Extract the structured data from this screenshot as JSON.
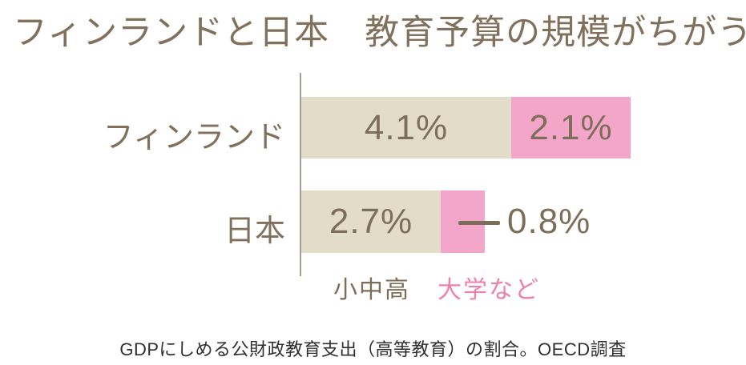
{
  "title": "フィンランドと日本　教育予算の規模がちがう",
  "chart_data": {
    "type": "bar",
    "orientation": "horizontal-stacked",
    "title": "フィンランドと日本　教育予算の規模がちがう",
    "unit": "% of GDP",
    "categories": [
      "フィンランド",
      "日本"
    ],
    "series": [
      {
        "name": "小中高",
        "color": "#e2dcc9",
        "values": [
          4.1,
          2.7
        ]
      },
      {
        "name": "大学など",
        "color": "#f3a6ca",
        "values": [
          2.1,
          0.8
        ]
      }
    ],
    "value_labels": [
      [
        "4.1%",
        "2.1%"
      ],
      [
        "2.7%",
        "0.8%"
      ]
    ],
    "legend_position": "bottom",
    "grid": false,
    "note": "GDPにしめる公財政教育支出（高等教育）の割合。OECD調査"
  },
  "legend": {
    "primary": "小中高",
    "secondary": "大学など"
  },
  "footer": "GDPにしめる公財政教育支出（高等教育）の割合。OECD調査",
  "colors": {
    "title_text": "#80705c",
    "bar_primary": "#e2dcc9",
    "bar_secondary": "#f3a6ca",
    "value_text": "#7d6e59",
    "legend_secondary_text": "#ee7fae",
    "axis_line": "#a59e92",
    "footer_text": "#2f2f2f",
    "background": "#ffffff"
  }
}
